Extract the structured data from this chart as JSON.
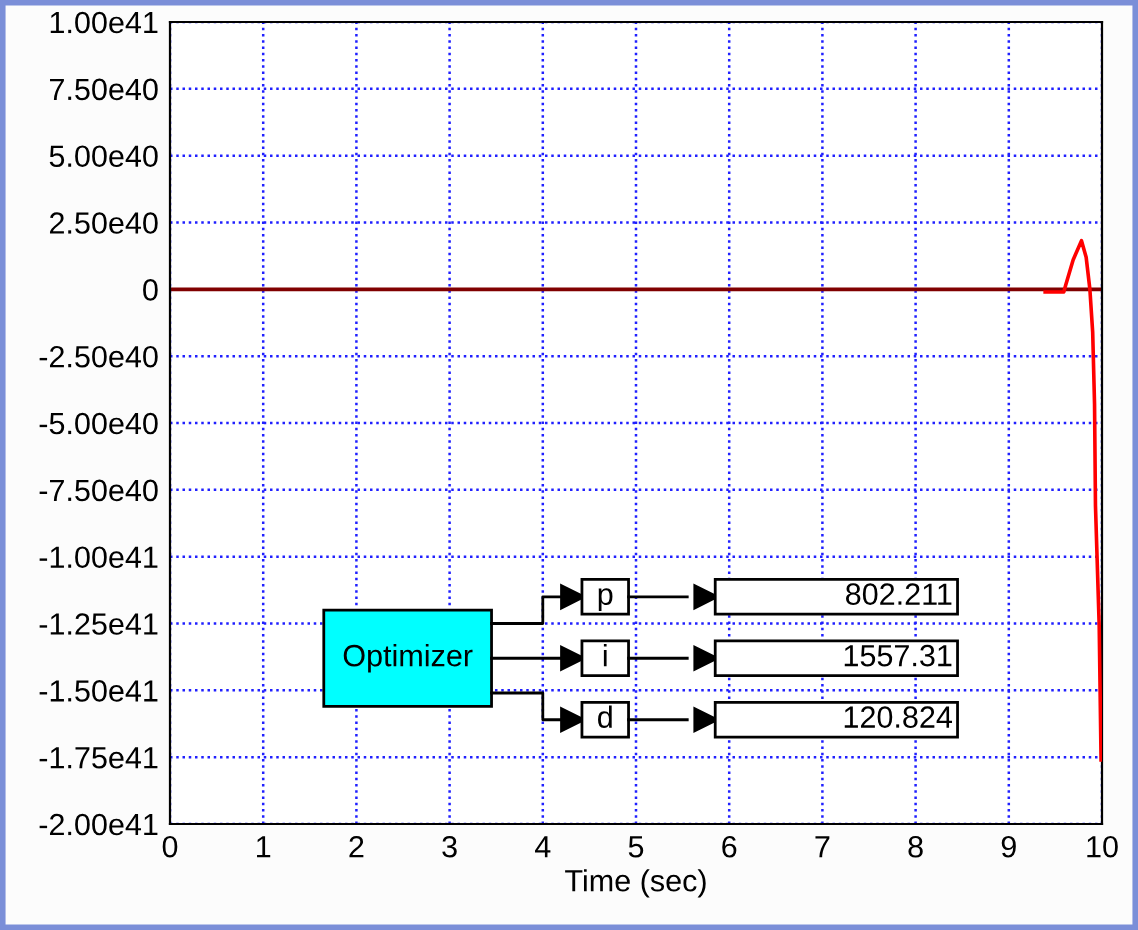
{
  "chart_data": {
    "type": "line",
    "xlabel": "Time (sec)",
    "xlim": [
      0,
      10
    ],
    "xticks": [
      0,
      1,
      2,
      3,
      4,
      5,
      6,
      7,
      8,
      9,
      10
    ],
    "ylim": [
      -2e+41,
      1e+41
    ],
    "yticks": [
      {
        "value": -2e+41,
        "label": "-2.00e41"
      },
      {
        "value": -1.75e+41,
        "label": "-1.75e41"
      },
      {
        "value": -1.5e+41,
        "label": "-1.50e41"
      },
      {
        "value": -1.25e+41,
        "label": "-1.25e41"
      },
      {
        "value": -1e+41,
        "label": "-1.00e41"
      },
      {
        "value": -7.5e+40,
        "label": "-7.50e40"
      },
      {
        "value": -5e+40,
        "label": "-5.00e40"
      },
      {
        "value": -2.5e+40,
        "label": "-2.50e40"
      },
      0,
      {
        "value": 2.5e+40,
        "label": "2.50e40"
      },
      {
        "value": 5e+40,
        "label": "5.00e40"
      },
      {
        "value": 7.5e+40,
        "label": "7.50e40"
      },
      {
        "value": 1e+41,
        "label": "1.00e41"
      }
    ],
    "grid": true,
    "line_style": "solid",
    "marker": "none",
    "series": [
      {
        "color": "#ff0000",
        "x": [
          9.39,
          9.5,
          9.59,
          9.61,
          9.69,
          9.78,
          9.83,
          9.87,
          9.9,
          9.92,
          9.93,
          9.97,
          9.99
        ],
        "values": [
          -1e+39,
          -1e+39,
          -1e+39,
          1.5e+39,
          1.1e+40,
          1.82e+40,
          1.2e+40,
          0,
          -1.6e+40,
          -4.3e+40,
          -8.1e+40,
          -1.26e+41,
          -1.76e+41
        ]
      }
    ],
    "ref_lines": [
      {
        "axis": "y",
        "value": 0,
        "color": "#800000",
        "line_style": "solid"
      }
    ],
    "annotations": [
      "Optimizer",
      "p",
      "i",
      "d",
      "802.211",
      "1557.31",
      "120.824"
    ]
  }
}
